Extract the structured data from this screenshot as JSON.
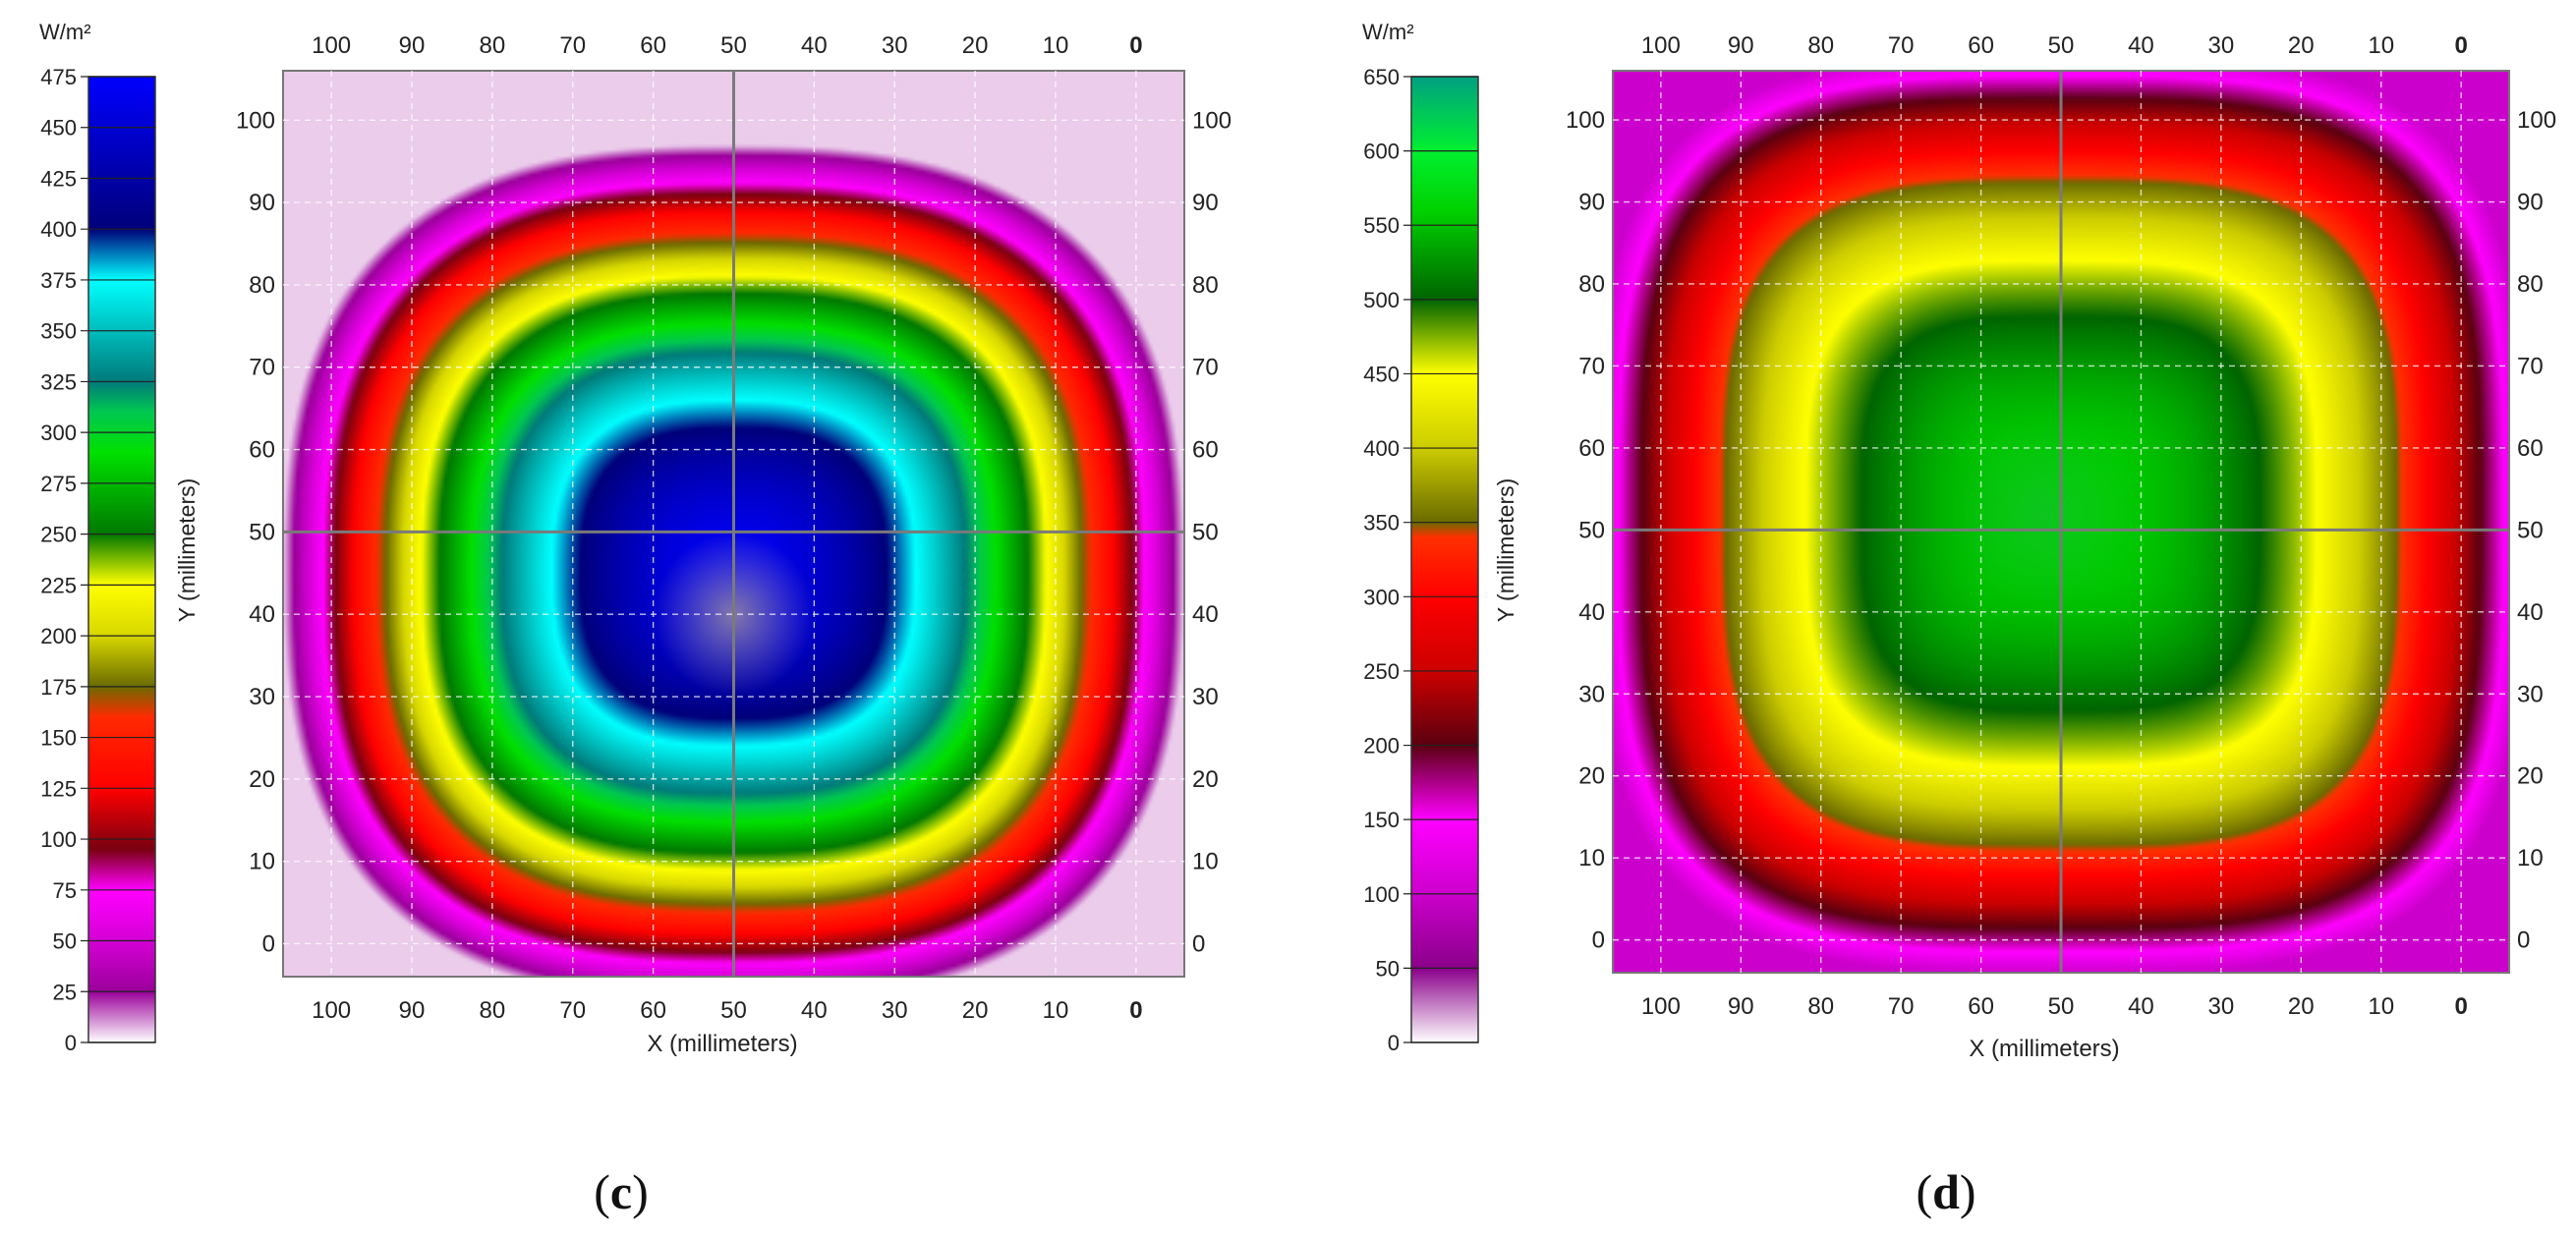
{
  "chart_data": [
    {
      "type": "heatmap",
      "panel_label": "c",
      "panel_label_open": "(",
      "panel_label_close": ")",
      "unit_label": "W/m²",
      "xlabel": "X (millimeters)",
      "ylabel": "Y (millimeters)",
      "x_ticks": [
        "100",
        "90",
        "80",
        "70",
        "60",
        "50",
        "40",
        "30",
        "20",
        "10",
        "0"
      ],
      "y_ticks": [
        "0",
        "10",
        "20",
        "30",
        "40",
        "50",
        "60",
        "70",
        "80",
        "90",
        "100"
      ],
      "xlim": [
        106,
        -6
      ],
      "ylim": [
        -4,
        106
      ],
      "colorbar": {
        "min": 0,
        "max": 475,
        "ticks": [
          "0",
          "25",
          "50",
          "75",
          "100",
          "125",
          "150",
          "175",
          "200",
          "225",
          "250",
          "275",
          "300",
          "325",
          "350",
          "375",
          "400",
          "425",
          "450",
          "475"
        ]
      },
      "field": {
        "center_x": 50,
        "center_y": 45,
        "max_value": 470,
        "min_value": 5,
        "peak_note_value": 475
      },
      "color_stops": [
        {
          "v": 0,
          "c": "#ffffff"
        },
        {
          "v": 25,
          "c": "#9a009a"
        },
        {
          "v": 50,
          "c": "#d400d4"
        },
        {
          "v": 75,
          "c": "#ff00ff"
        },
        {
          "v": 95,
          "c": "#7a0010"
        },
        {
          "v": 125,
          "c": "#ff0000"
        },
        {
          "v": 160,
          "c": "#ff2a00"
        },
        {
          "v": 175,
          "c": "#6b6b00"
        },
        {
          "v": 200,
          "c": "#d7d700"
        },
        {
          "v": 225,
          "c": "#ffff00"
        },
        {
          "v": 250,
          "c": "#007800"
        },
        {
          "v": 290,
          "c": "#00e000"
        },
        {
          "v": 310,
          "c": "#00c850"
        },
        {
          "v": 325,
          "c": "#007a7a"
        },
        {
          "v": 375,
          "c": "#00ffff"
        },
        {
          "v": 400,
          "c": "#00007a"
        },
        {
          "v": 475,
          "c": "#0000ff"
        }
      ]
    },
    {
      "type": "heatmap",
      "panel_label": "d",
      "panel_label_open": "(",
      "panel_label_close": ")",
      "unit_label": "W/m²",
      "xlabel": "X (millimeters)",
      "ylabel": "Y (millimeters)",
      "x_ticks": [
        "100",
        "90",
        "80",
        "70",
        "60",
        "50",
        "40",
        "30",
        "20",
        "10",
        "0"
      ],
      "y_ticks": [
        "0",
        "10",
        "20",
        "30",
        "40",
        "50",
        "60",
        "70",
        "80",
        "90",
        "100"
      ],
      "xlim": [
        106,
        -6
      ],
      "ylim": [
        -4,
        106
      ],
      "colorbar": {
        "min": 0,
        "max": 650,
        "ticks": [
          "0",
          "50",
          "100",
          "150",
          "200",
          "250",
          "300",
          "350",
          "400",
          "450",
          "500",
          "550",
          "600",
          "650"
        ]
      },
      "field": {
        "center_x": 50,
        "center_y": 52,
        "max_value": 560,
        "min_value": 100
      },
      "color_stops": [
        {
          "v": 0,
          "c": "#ffffff"
        },
        {
          "v": 50,
          "c": "#8a008a"
        },
        {
          "v": 100,
          "c": "#cc00cc"
        },
        {
          "v": 150,
          "c": "#ff00ff"
        },
        {
          "v": 200,
          "c": "#5a0010"
        },
        {
          "v": 250,
          "c": "#cc0000"
        },
        {
          "v": 300,
          "c": "#ff0000"
        },
        {
          "v": 340,
          "c": "#ff3000"
        },
        {
          "v": 350,
          "c": "#6b6b00"
        },
        {
          "v": 400,
          "c": "#cccc00"
        },
        {
          "v": 450,
          "c": "#ffff00"
        },
        {
          "v": 500,
          "c": "#006400"
        },
        {
          "v": 560,
          "c": "#00d200"
        },
        {
          "v": 600,
          "c": "#00f030"
        },
        {
          "v": 650,
          "c": "#00a080"
        }
      ]
    }
  ]
}
